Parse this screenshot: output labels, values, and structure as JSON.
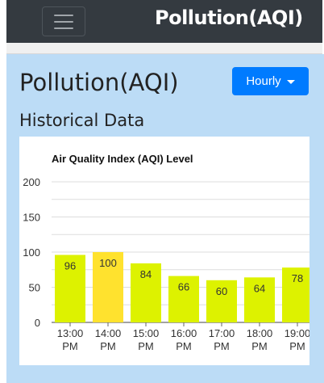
{
  "navbar": {
    "brand": "Pollution(AQI)"
  },
  "page": {
    "title": "Pollution(AQI)",
    "dropdown_label": "Hourly",
    "subtitle": "Historical Data"
  },
  "colors": {
    "navbar": "#343a40",
    "panel": "#bcdcf6",
    "button": "#007bff"
  },
  "chart_data": {
    "type": "bar",
    "title": "Air Quality Index (AQI) Level",
    "categories": [
      [
        "13:00",
        "PM"
      ],
      [
        "14:00",
        "PM"
      ],
      [
        "15:00",
        "PM"
      ],
      [
        "16:00",
        "PM"
      ],
      [
        "17:00",
        "PM"
      ],
      [
        "18:00",
        "PM"
      ],
      [
        "19:00",
        "PM"
      ]
    ],
    "values": [
      96,
      100,
      84,
      66,
      60,
      64,
      78
    ],
    "bar_colors": [
      "#ddf200",
      "#ffe22e",
      "#ddf200",
      "#ddf200",
      "#ddf200",
      "#ddf200",
      "#ddf200"
    ],
    "ylim": [
      0,
      200
    ],
    "yticks": [
      0,
      50,
      100,
      150,
      200
    ],
    "grid": true
  }
}
